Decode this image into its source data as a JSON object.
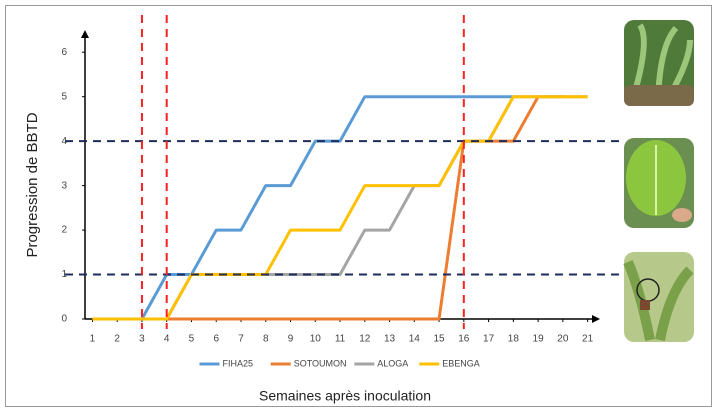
{
  "chart_data": {
    "type": "line",
    "x_label": "Semaines après inoculation",
    "y_label": "Progression de BBTD",
    "x": [
      1,
      2,
      3,
      4,
      5,
      6,
      7,
      8,
      9,
      10,
      11,
      12,
      13,
      14,
      15,
      16,
      17,
      18,
      19,
      20,
      21
    ],
    "series": [
      {
        "name": "FIHA25",
        "color": "#5b9bd5",
        "values": [
          0,
          0,
          0,
          1,
          1,
          2,
          2,
          3,
          3,
          4,
          4,
          5,
          5,
          5,
          5,
          5,
          5,
          5,
          null,
          null,
          null
        ]
      },
      {
        "name": "SOTOUMON",
        "color": "#ed7d31",
        "values": [
          0,
          0,
          0,
          0,
          0,
          0,
          0,
          0,
          0,
          0,
          0,
          0,
          0,
          0,
          0,
          4,
          4,
          4,
          5,
          5,
          null
        ]
      },
      {
        "name": "ALOGA",
        "color": "#a5a5a5",
        "values": [
          0,
          0,
          0,
          0,
          1,
          1,
          1,
          1,
          1,
          1,
          1,
          2,
          2,
          3,
          3,
          4,
          4,
          5,
          5,
          5,
          5
        ]
      },
      {
        "name": "EBENGA",
        "color": "#ffc000",
        "values": [
          0,
          0,
          0,
          0,
          1,
          1,
          1,
          1,
          2,
          2,
          2,
          3,
          3,
          3,
          3,
          4,
          4,
          5,
          5,
          5,
          5
        ]
      }
    ],
    "xlim": [
      0.7,
      21.5
    ],
    "ylim": [
      0,
      6.5
    ],
    "xticks": [
      1,
      2,
      3,
      4,
      5,
      6,
      7,
      8,
      9,
      10,
      11,
      12,
      13,
      14,
      15,
      16,
      17,
      18,
      19,
      20,
      21
    ],
    "yticks": [
      0,
      1,
      2,
      3,
      4,
      5,
      6
    ],
    "vlines": [
      3,
      4,
      16
    ],
    "vline_color": "#ff2020",
    "hlines": [
      1,
      4
    ],
    "hline_color": "#1f2d5c"
  }
}
